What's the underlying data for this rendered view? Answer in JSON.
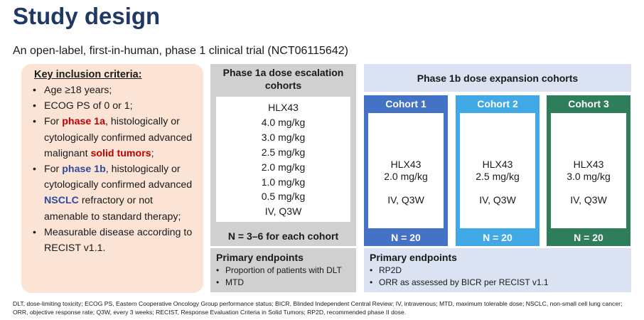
{
  "title": "Study design",
  "subtitle": "An open-label, first-in-human, phase 1 clinical trial (NCT06115642)",
  "inclusion": {
    "heading": "Key inclusion criteria:",
    "bullet": "•",
    "item1": "Age ≥18 years;",
    "item2": "ECOG PS of 0 or 1;",
    "item3_pre": "For ",
    "item3_phase": "phase 1a",
    "item3_mid": ", histologically or cytologically confirmed advanced malignant ",
    "item3_solid": "solid tumors",
    "item3_post": ";",
    "item4_pre": "For ",
    "item4_phase": "phase 1b",
    "item4_mid": ", histologically or cytologically confirmed advanced ",
    "item4_nsclc": "NSCLC",
    "item4_post": " refractory or not amenable to standard therapy;",
    "item5": "Measurable disease according to RECIST v1.1."
  },
  "phase1a": {
    "heading": "Phase 1a dose escalation cohorts",
    "doses": [
      "HLX43",
      "4.0 mg/kg",
      "3.0 mg/kg",
      "2.5 mg/kg",
      "2.0 mg/kg",
      "1.0 mg/kg",
      "0.5 mg/kg",
      "IV, Q3W"
    ],
    "n_label": "N = 3–6 for each cohort",
    "endpoints_heading": "Primary endpoints",
    "endpoints": [
      "Proportion of patients with DLT",
      "MTD"
    ]
  },
  "phase1b": {
    "heading": "Phase 1b dose expansion cohorts",
    "cohorts": [
      {
        "label": "Cohort 1",
        "drug": "HLX43",
        "dose": "2.0 mg/kg",
        "route": "IV, Q3W",
        "n": "N = 20",
        "color": "#4472c4"
      },
      {
        "label": "Cohort 2",
        "drug": "HLX43",
        "dose": "2.5 mg/kg",
        "route": "IV, Q3W",
        "n": "N = 20",
        "color": "#40a9e6"
      },
      {
        "label": "Cohort 3",
        "drug": "HLX43",
        "dose": "3.0 mg/kg",
        "route": "IV, Q3W",
        "n": "N = 20",
        "color": "#2e7d5b"
      }
    ],
    "endpoints_heading": "Primary endpoints",
    "endpoints": [
      "RP2D",
      "ORR as assessed by BICR per RECIST v1.1"
    ]
  },
  "footer": "DLT, dose-limiting toxicity; ECOG PS, Eastern Cooperative Oncology Group performance status; BICR, Blinded Independent Central Review; IV, intravenous; MTD, maximum tolerable dose; NSCLC, non-small cell lung cancer; ORR, objective response rate; Q3W, every 3 weeks; RECIST, Response Evaluation Criteria in Solid Tumors; RP2D, recommended phase II dose."
}
